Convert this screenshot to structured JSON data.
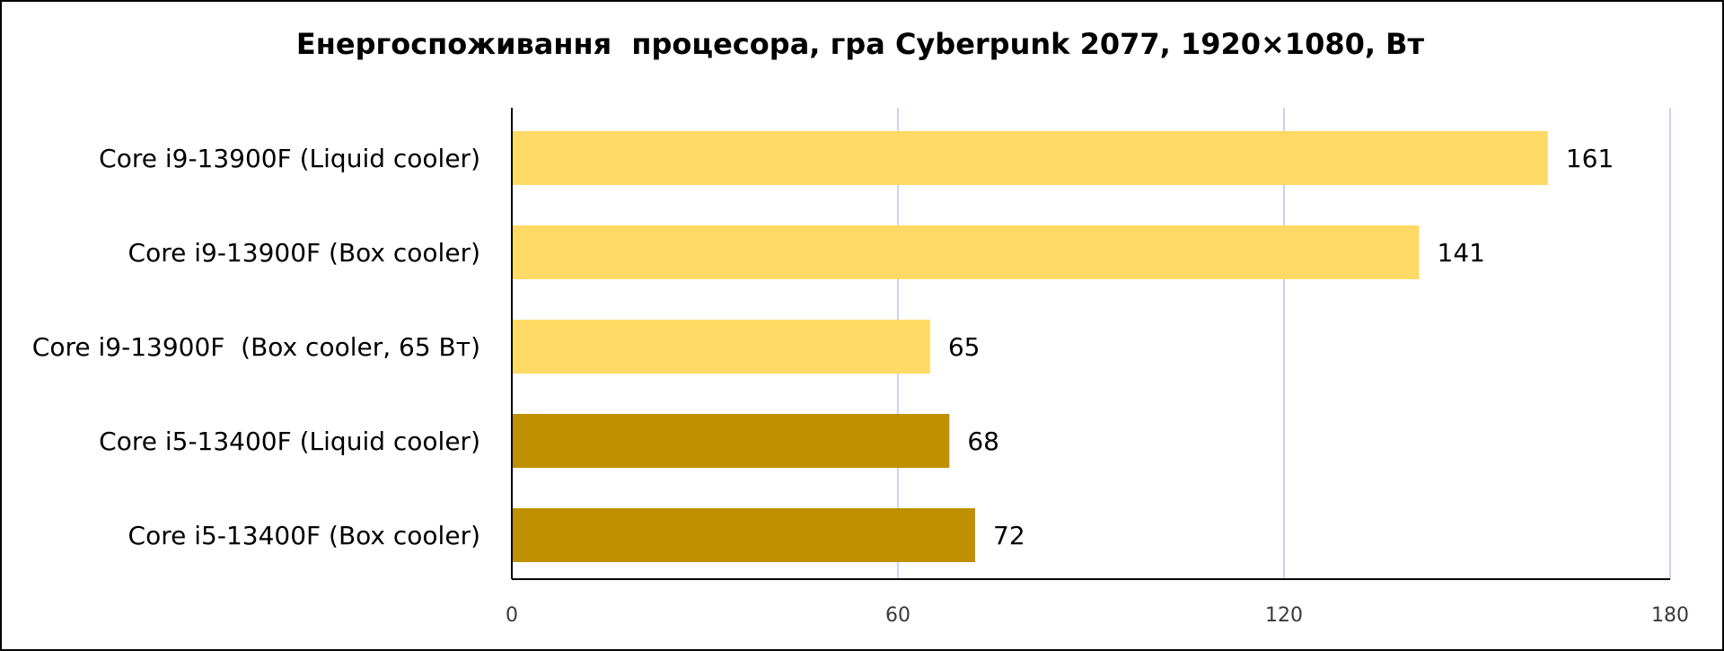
{
  "chart_data": {
    "type": "bar",
    "orientation": "horizontal",
    "title": "Енергоспоживання  процесора, гра Cyberpunk 2077, 1920×1080, Вт",
    "xlabel": "",
    "ylabel": "",
    "categories": [
      "Core i9-13900F (Liquid cooler)",
      "Core i9-13900F (Box cooler)",
      "Core i9-13900F  (Box cooler, 65 Вт)",
      "Core i5-13400F (Liquid cooler)",
      "Core i5-13400F (Box cooler)"
    ],
    "values": [
      161,
      141,
      65,
      68,
      72
    ],
    "bar_colors": [
      "#FFD966",
      "#FFD966",
      "#FFD966",
      "#BF9000",
      "#BF9000"
    ],
    "xlim": [
      0,
      180
    ],
    "xticks": [
      0,
      60,
      120,
      180
    ],
    "grid": "vertical",
    "gridline_color": "#B4C6E7",
    "legend": "none"
  }
}
